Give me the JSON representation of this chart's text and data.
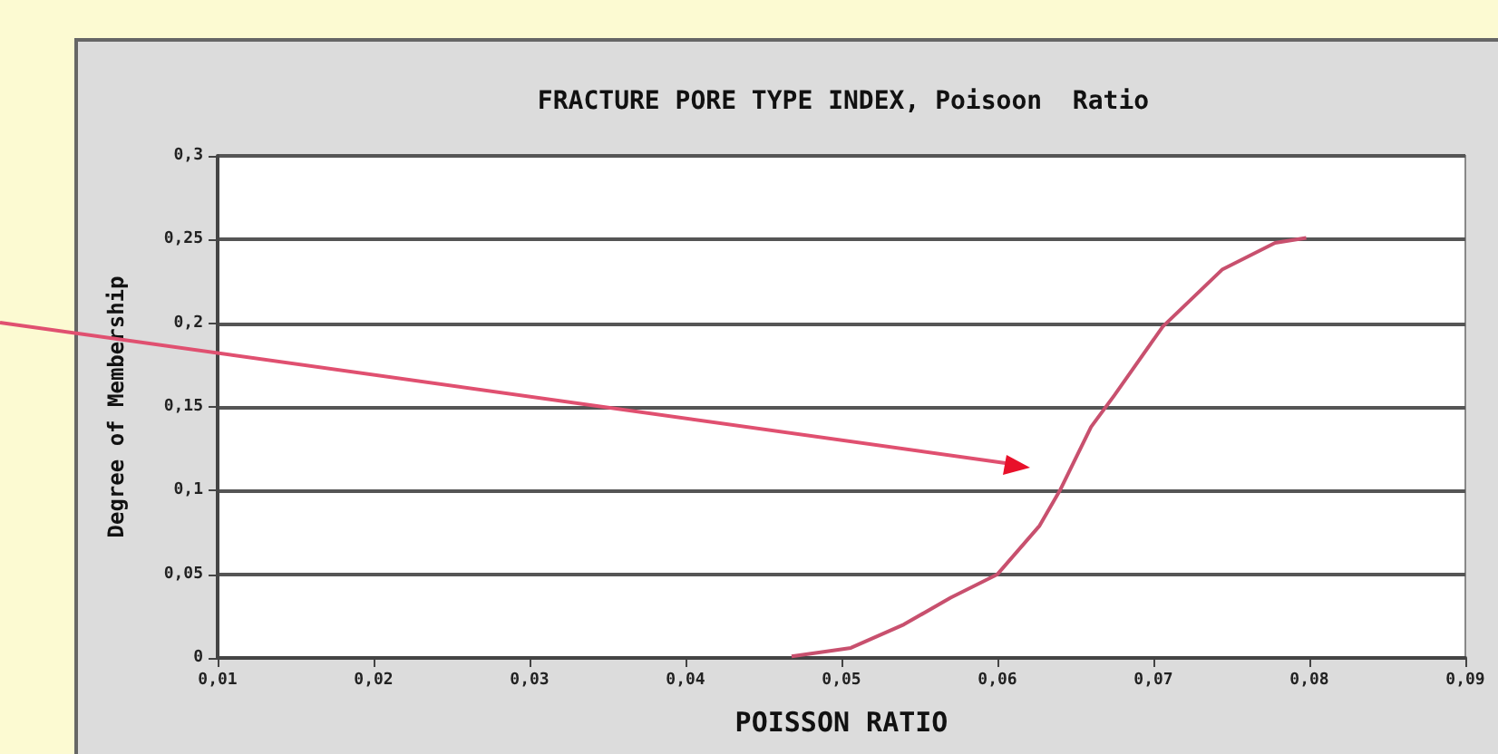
{
  "chart_data": {
    "type": "line",
    "title": "FRACTURE PORE TYPE INDEX, Poisoon  Ratio",
    "xlabel": "POISSON RATIO",
    "ylabel": "Degree of Membership",
    "x": [
      0.0468,
      0.0506,
      0.054,
      0.057,
      0.06,
      0.0627,
      0.064,
      0.066,
      0.0675,
      0.0706,
      0.0744,
      0.0778,
      0.0798
    ],
    "series": [
      {
        "color": "#c8506e",
        "values": [
          0.001,
          0.006,
          0.02,
          0.036,
          0.05,
          0.079,
          0.1,
          0.138,
          0.157,
          0.198,
          0.232,
          0.248,
          0.251
        ]
      }
    ],
    "xlim": [
      0.01,
      0.09
    ],
    "xticks": [
      {
        "value": 0.01,
        "label": "0,01"
      },
      {
        "value": 0.02,
        "label": "0,02"
      },
      {
        "value": 0.03,
        "label": "0,03"
      },
      {
        "value": 0.04,
        "label": "0,04"
      },
      {
        "value": 0.05,
        "label": "0,05"
      },
      {
        "value": 0.06,
        "label": "0,06"
      },
      {
        "value": 0.07,
        "label": "0,07"
      },
      {
        "value": 0.08,
        "label": "0,08"
      },
      {
        "value": 0.09,
        "label": "0,09"
      }
    ],
    "ylim": [
      0,
      0.3
    ],
    "yticks": [
      0,
      {
        "value": 0.05,
        "label": "0,05"
      },
      {
        "value": 0.1,
        "label": "0,1"
      },
      {
        "value": 0.15,
        "label": "0,15"
      },
      {
        "value": 0.2,
        "label": "0,2"
      },
      {
        "value": 0.25,
        "label": "0,25"
      },
      {
        "value": 0.3,
        "label": "0,3"
      }
    ],
    "grid": "y",
    "marker": "none",
    "line_style": "solid"
  }
}
